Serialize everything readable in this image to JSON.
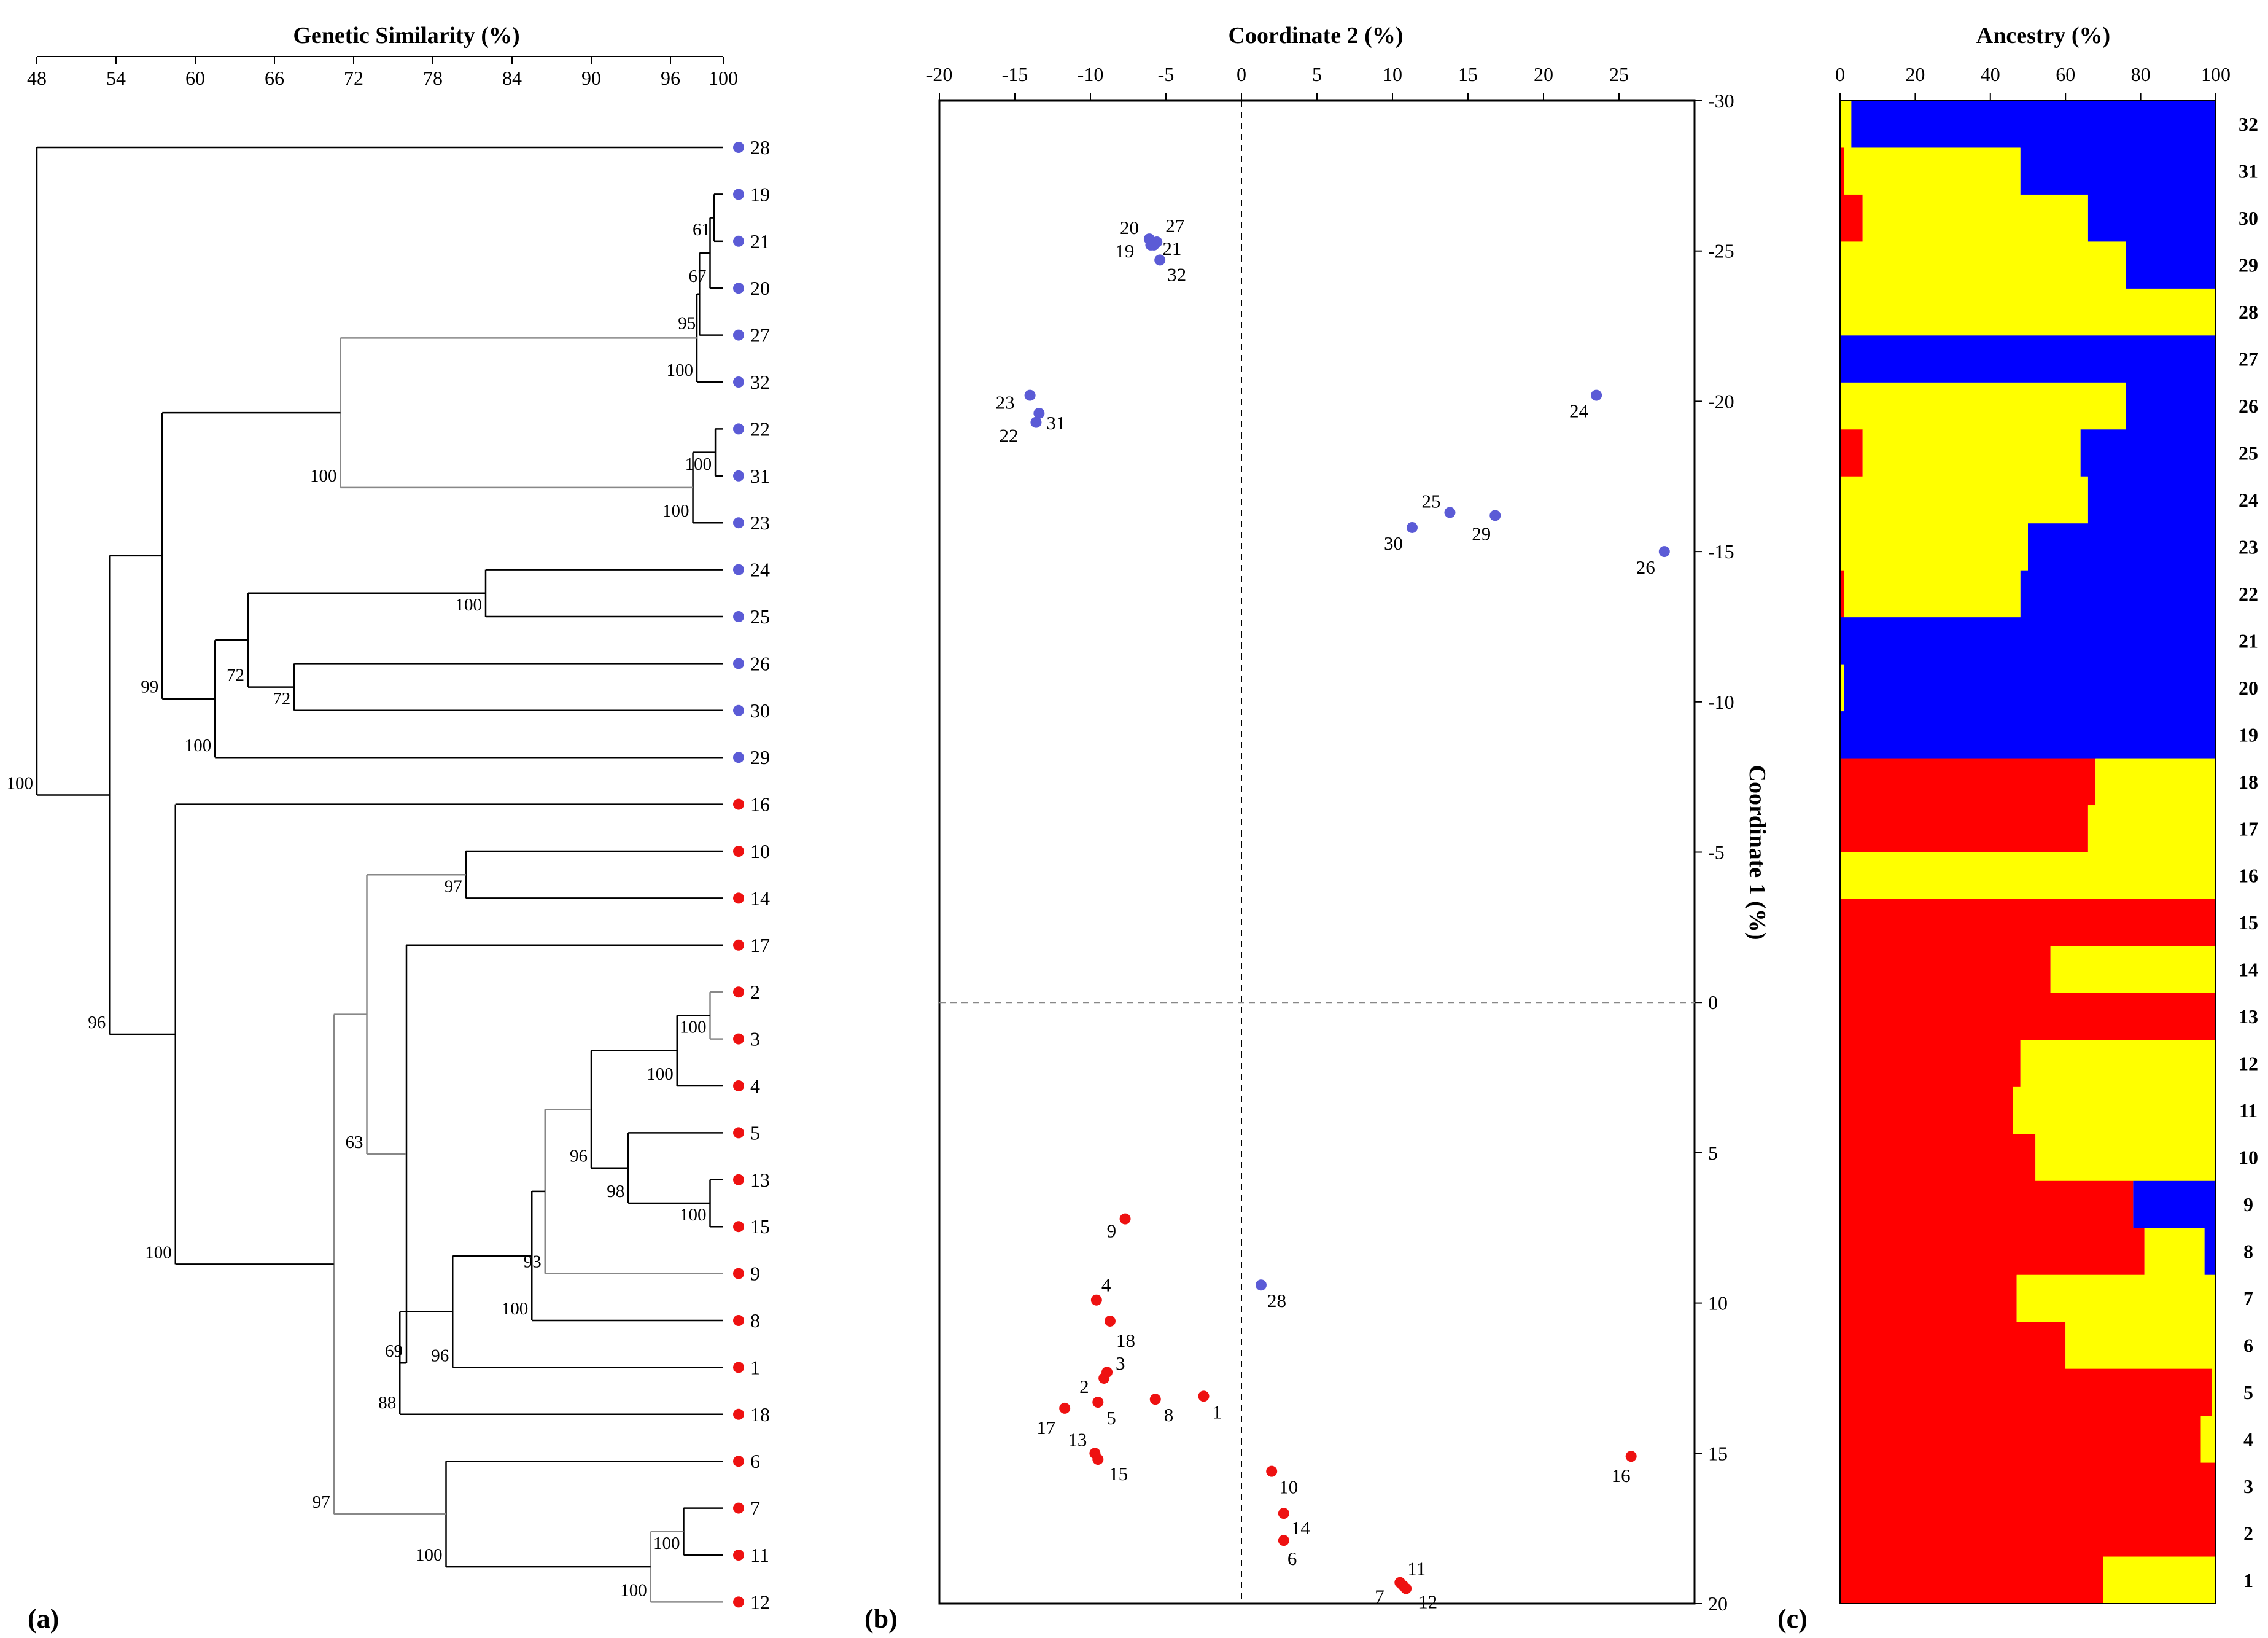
{
  "figure_labels": {
    "a": "(a)",
    "b": "(b)",
    "c": "(c)"
  },
  "colors": {
    "group1": "#5b5bd6",
    "group2": "#ee1111",
    "anc_blue": "#0000ff",
    "anc_yellow": "#ffff00",
    "anc_red": "#ff0000",
    "line_dark": "#000000",
    "line_gray": "#888888"
  },
  "chart_data": [
    {
      "type": "dendrogram",
      "title": "Genetic Similarity (%)",
      "axis": {
        "range": [
          48,
          100
        ],
        "ticks": [
          48,
          54,
          60,
          66,
          72,
          78,
          84,
          90,
          96,
          100
        ]
      },
      "leaves": [
        {
          "label": "28",
          "group": "group1"
        },
        {
          "label": "19",
          "group": "group1"
        },
        {
          "label": "21",
          "group": "group1"
        },
        {
          "label": "20",
          "group": "group1"
        },
        {
          "label": "27",
          "group": "group1"
        },
        {
          "label": "32",
          "group": "group1"
        },
        {
          "label": "22",
          "group": "group1"
        },
        {
          "label": "31",
          "group": "group1"
        },
        {
          "label": "23",
          "group": "group1"
        },
        {
          "label": "24",
          "group": "group1"
        },
        {
          "label": "25",
          "group": "group1"
        },
        {
          "label": "26",
          "group": "group1"
        },
        {
          "label": "30",
          "group": "group1"
        },
        {
          "label": "29",
          "group": "group1"
        },
        {
          "label": "16",
          "group": "group2"
        },
        {
          "label": "10",
          "group": "group2"
        },
        {
          "label": "14",
          "group": "group2"
        },
        {
          "label": "17",
          "group": "group2"
        },
        {
          "label": "2",
          "group": "group2"
        },
        {
          "label": "3",
          "group": "group2"
        },
        {
          "label": "4",
          "group": "group2"
        },
        {
          "label": "5",
          "group": "group2"
        },
        {
          "label": "13",
          "group": "group2"
        },
        {
          "label": "15",
          "group": "group2"
        },
        {
          "label": "9",
          "group": "group2"
        },
        {
          "label": "8",
          "group": "group2"
        },
        {
          "label": "1",
          "group": "group2"
        },
        {
          "label": "18",
          "group": "group2"
        },
        {
          "label": "6",
          "group": "group2"
        },
        {
          "label": "7",
          "group": "group2"
        },
        {
          "label": "11",
          "group": "group2"
        },
        {
          "label": "12",
          "group": "group2"
        }
      ],
      "nodes": [
        {
          "id": "n1",
          "children": [
            "19",
            "21"
          ],
          "sim": 99.3,
          "support": "61"
        },
        {
          "id": "n2",
          "children": [
            "n1",
            "20"
          ],
          "sim": 99.0,
          "support": "67"
        },
        {
          "id": "n3",
          "children": [
            "n2",
            "27"
          ],
          "sim": 98.2,
          "support": "95"
        },
        {
          "id": "n4",
          "children": [
            "n3",
            "32"
          ],
          "sim": 98.0,
          "support": "100"
        },
        {
          "id": "n5",
          "children": [
            "22",
            "31"
          ],
          "sim": 99.4,
          "support": "100"
        },
        {
          "id": "n6",
          "children": [
            "n5",
            "23"
          ],
          "sim": 97.7,
          "support": "100"
        },
        {
          "id": "n7",
          "children": [
            "n4",
            "n6"
          ],
          "sim": 71.0,
          "support": "100",
          "gray": true
        },
        {
          "id": "n8",
          "children": [
            "24",
            "25"
          ],
          "sim": 82.0,
          "support": "100"
        },
        {
          "id": "n9",
          "children": [
            "26",
            "30"
          ],
          "sim": 67.5,
          "support": "72"
        },
        {
          "id": "n10",
          "children": [
            "n8",
            "n9"
          ],
          "sim": 64.0,
          "support": "72"
        },
        {
          "id": "n11",
          "children": [
            "n10",
            "29"
          ],
          "sim": 61.5,
          "support": "100"
        },
        {
          "id": "n12",
          "children": [
            "n7",
            "n11"
          ],
          "sim": 57.5,
          "support": "99"
        },
        {
          "id": "n13",
          "children": [
            "10",
            "14"
          ],
          "sim": 80.5,
          "support": "97"
        },
        {
          "id": "n14",
          "children": [
            "2",
            "3"
          ],
          "sim": 99.0,
          "support": "100",
          "gray": true
        },
        {
          "id": "n15",
          "children": [
            "n14",
            "4"
          ],
          "sim": 96.5,
          "support": "100"
        },
        {
          "id": "n16",
          "children": [
            "13",
            "15"
          ],
          "sim": 99.0,
          "support": "100"
        },
        {
          "id": "n17",
          "children": [
            "5",
            "n16"
          ],
          "sim": 92.8,
          "support": "98"
        },
        {
          "id": "n18",
          "children": [
            "n15",
            "n17"
          ],
          "sim": 90.0,
          "support": "96"
        },
        {
          "id": "n19",
          "children": [
            "n18",
            "9"
          ],
          "sim": 86.5,
          "support": "93",
          "gray": true
        },
        {
          "id": "n20",
          "children": [
            "n19",
            "8"
          ],
          "sim": 85.5,
          "support": "100"
        },
        {
          "id": "n21",
          "children": [
            "n20",
            "1"
          ],
          "sim": 79.5,
          "support": "96"
        },
        {
          "id": "n22",
          "children": [
            "n21",
            "18"
          ],
          "sim": 75.5,
          "support": "88"
        },
        {
          "id": "n23",
          "children": [
            "17",
            "n22"
          ],
          "sim": 76.0,
          "support": "69"
        },
        {
          "id": "n24",
          "children": [
            "n13",
            "n23"
          ],
          "sim": 73.0,
          "support": "63",
          "gray": true
        },
        {
          "id": "n25",
          "children": [
            "7",
            "11"
          ],
          "sim": 97.0,
          "support": "100"
        },
        {
          "id": "n26",
          "children": [
            "n25",
            "12"
          ],
          "sim": 94.5,
          "support": "100",
          "gray": true
        },
        {
          "id": "n27",
          "children": [
            "6",
            "n26"
          ],
          "sim": 79.0,
          "support": "100"
        },
        {
          "id": "n28",
          "children": [
            "n24",
            "n27"
          ],
          "sim": 70.5,
          "support": "97",
          "gray": true
        },
        {
          "id": "n29",
          "children": [
            "16",
            "n28"
          ],
          "sim": 58.5,
          "support": "100"
        },
        {
          "id": "n30",
          "children": [
            "n12",
            "n29"
          ],
          "sim": 53.5,
          "support": "96"
        },
        {
          "id": "n31",
          "children": [
            "28",
            "n30"
          ],
          "sim": 48.0,
          "support": "100"
        }
      ]
    },
    {
      "type": "scatter",
      "title": "Coordinate 2 (%)",
      "ylabel": "Coordinate 1 (%)",
      "xlim": [
        -20,
        30
      ],
      "ylim": [
        -30,
        20
      ],
      "xticks": [
        -20,
        -15,
        -10,
        -5,
        0,
        5,
        10,
        15,
        20,
        25
      ],
      "yticks": [
        -30,
        -25,
        -20,
        -15,
        -10,
        -5,
        0,
        5,
        10,
        15,
        20
      ],
      "points": [
        {
          "label": "20",
          "x": -6.1,
          "y": -25.4,
          "group": "group1"
        },
        {
          "label": "27",
          "x": -5.6,
          "y": -25.3,
          "group": "group1"
        },
        {
          "label": "21",
          "x": -5.8,
          "y": -25.2,
          "group": "group1"
        },
        {
          "label": "19",
          "x": -6.0,
          "y": -25.2,
          "group": "group1"
        },
        {
          "label": "32",
          "x": -5.4,
          "y": -24.7,
          "group": "group1"
        },
        {
          "label": "23",
          "x": -14.0,
          "y": -20.2,
          "group": "group1"
        },
        {
          "label": "31",
          "x": -13.4,
          "y": -19.6,
          "group": "group1"
        },
        {
          "label": "22",
          "x": -13.6,
          "y": -19.3,
          "group": "group1"
        },
        {
          "label": "24",
          "x": 23.5,
          "y": -20.2,
          "group": "group1"
        },
        {
          "label": "25",
          "x": 13.8,
          "y": -16.3,
          "group": "group1"
        },
        {
          "label": "29",
          "x": 16.8,
          "y": -16.2,
          "group": "group1"
        },
        {
          "label": "30",
          "x": 11.3,
          "y": -15.8,
          "group": "group1"
        },
        {
          "label": "26",
          "x": 28.0,
          "y": -15.0,
          "group": "group1"
        },
        {
          "label": "28",
          "x": 1.3,
          "y": 9.4,
          "group": "group1"
        },
        {
          "label": "9",
          "x": -7.7,
          "y": 7.2,
          "group": "group2"
        },
        {
          "label": "4",
          "x": -9.6,
          "y": 9.9,
          "group": "group2"
        },
        {
          "label": "18",
          "x": -8.7,
          "y": 10.6,
          "group": "group2"
        },
        {
          "label": "3",
          "x": -8.9,
          "y": 12.3,
          "group": "group2"
        },
        {
          "label": "2",
          "x": -9.1,
          "y": 12.5,
          "group": "group2"
        },
        {
          "label": "8",
          "x": -5.7,
          "y": 13.2,
          "group": "group2"
        },
        {
          "label": "1",
          "x": -2.5,
          "y": 13.1,
          "group": "group2"
        },
        {
          "label": "5",
          "x": -9.5,
          "y": 13.3,
          "group": "group2"
        },
        {
          "label": "17",
          "x": -11.7,
          "y": 13.5,
          "group": "group2"
        },
        {
          "label": "13",
          "x": -9.7,
          "y": 15.0,
          "group": "group2"
        },
        {
          "label": "15",
          "x": -9.5,
          "y": 15.2,
          "group": "group2"
        },
        {
          "label": "10",
          "x": 2.0,
          "y": 15.6,
          "group": "group2"
        },
        {
          "label": "14",
          "x": 2.8,
          "y": 17.0,
          "group": "group2"
        },
        {
          "label": "6",
          "x": 2.8,
          "y": 17.9,
          "group": "group2"
        },
        {
          "label": "11",
          "x": 10.5,
          "y": 19.3,
          "group": "group2"
        },
        {
          "label": "7",
          "x": 10.7,
          "y": 19.4,
          "group": "group2"
        },
        {
          "label": "12",
          "x": 10.9,
          "y": 19.5,
          "group": "group2"
        },
        {
          "label": "16",
          "x": 25.8,
          "y": 15.1,
          "group": "group2"
        }
      ]
    },
    {
      "type": "stacked_bar",
      "title": "Ancestry (%)",
      "xlim": [
        0,
        100
      ],
      "xticks": [
        0,
        20,
        40,
        60,
        80,
        100
      ],
      "rows": [
        {
          "label": "32",
          "red": 0,
          "yellow": 3,
          "blue": 97
        },
        {
          "label": "31",
          "red": 1,
          "yellow": 47,
          "blue": 52
        },
        {
          "label": "30",
          "red": 6,
          "yellow": 60,
          "blue": 34
        },
        {
          "label": "29",
          "red": 0,
          "yellow": 76,
          "blue": 24
        },
        {
          "label": "28",
          "red": 0,
          "yellow": 100,
          "blue": 0
        },
        {
          "label": "27",
          "red": 0,
          "yellow": 0,
          "blue": 100
        },
        {
          "label": "26",
          "red": 0,
          "yellow": 76,
          "blue": 24
        },
        {
          "label": "25",
          "red": 6,
          "yellow": 58,
          "blue": 36
        },
        {
          "label": "24",
          "red": 0,
          "yellow": 66,
          "blue": 34
        },
        {
          "label": "23",
          "red": 0,
          "yellow": 50,
          "blue": 50
        },
        {
          "label": "22",
          "red": 1,
          "yellow": 47,
          "blue": 52
        },
        {
          "label": "21",
          "red": 0,
          "yellow": 0,
          "blue": 100
        },
        {
          "label": "20",
          "red": 0,
          "yellow": 1,
          "blue": 99
        },
        {
          "label": "19",
          "red": 0,
          "yellow": 0,
          "blue": 100
        },
        {
          "label": "18",
          "red": 68,
          "yellow": 32,
          "blue": 0
        },
        {
          "label": "17",
          "red": 66,
          "yellow": 34,
          "blue": 0
        },
        {
          "label": "16",
          "red": 0,
          "yellow": 100,
          "blue": 0
        },
        {
          "label": "15",
          "red": 100,
          "yellow": 0,
          "blue": 0
        },
        {
          "label": "14",
          "red": 56,
          "yellow": 44,
          "blue": 0
        },
        {
          "label": "13",
          "red": 100,
          "yellow": 0,
          "blue": 0
        },
        {
          "label": "12",
          "red": 48,
          "yellow": 52,
          "blue": 0
        },
        {
          "label": "11",
          "red": 46,
          "yellow": 54,
          "blue": 0
        },
        {
          "label": "10",
          "red": 52,
          "yellow": 48,
          "blue": 0
        },
        {
          "label": "9",
          "red": 78,
          "yellow": 0,
          "blue": 22
        },
        {
          "label": "8",
          "red": 81,
          "yellow": 16,
          "blue": 3
        },
        {
          "label": "7",
          "red": 47,
          "yellow": 53,
          "blue": 0
        },
        {
          "label": "6",
          "red": 60,
          "yellow": 40,
          "blue": 0
        },
        {
          "label": "5",
          "red": 99,
          "yellow": 1,
          "blue": 0
        },
        {
          "label": "4",
          "red": 96,
          "yellow": 4,
          "blue": 0
        },
        {
          "label": "3",
          "red": 100,
          "yellow": 0,
          "blue": 0
        },
        {
          "label": "2",
          "red": 100,
          "yellow": 0,
          "blue": 0
        },
        {
          "label": "1",
          "red": 70,
          "yellow": 30,
          "blue": 0
        }
      ]
    }
  ]
}
